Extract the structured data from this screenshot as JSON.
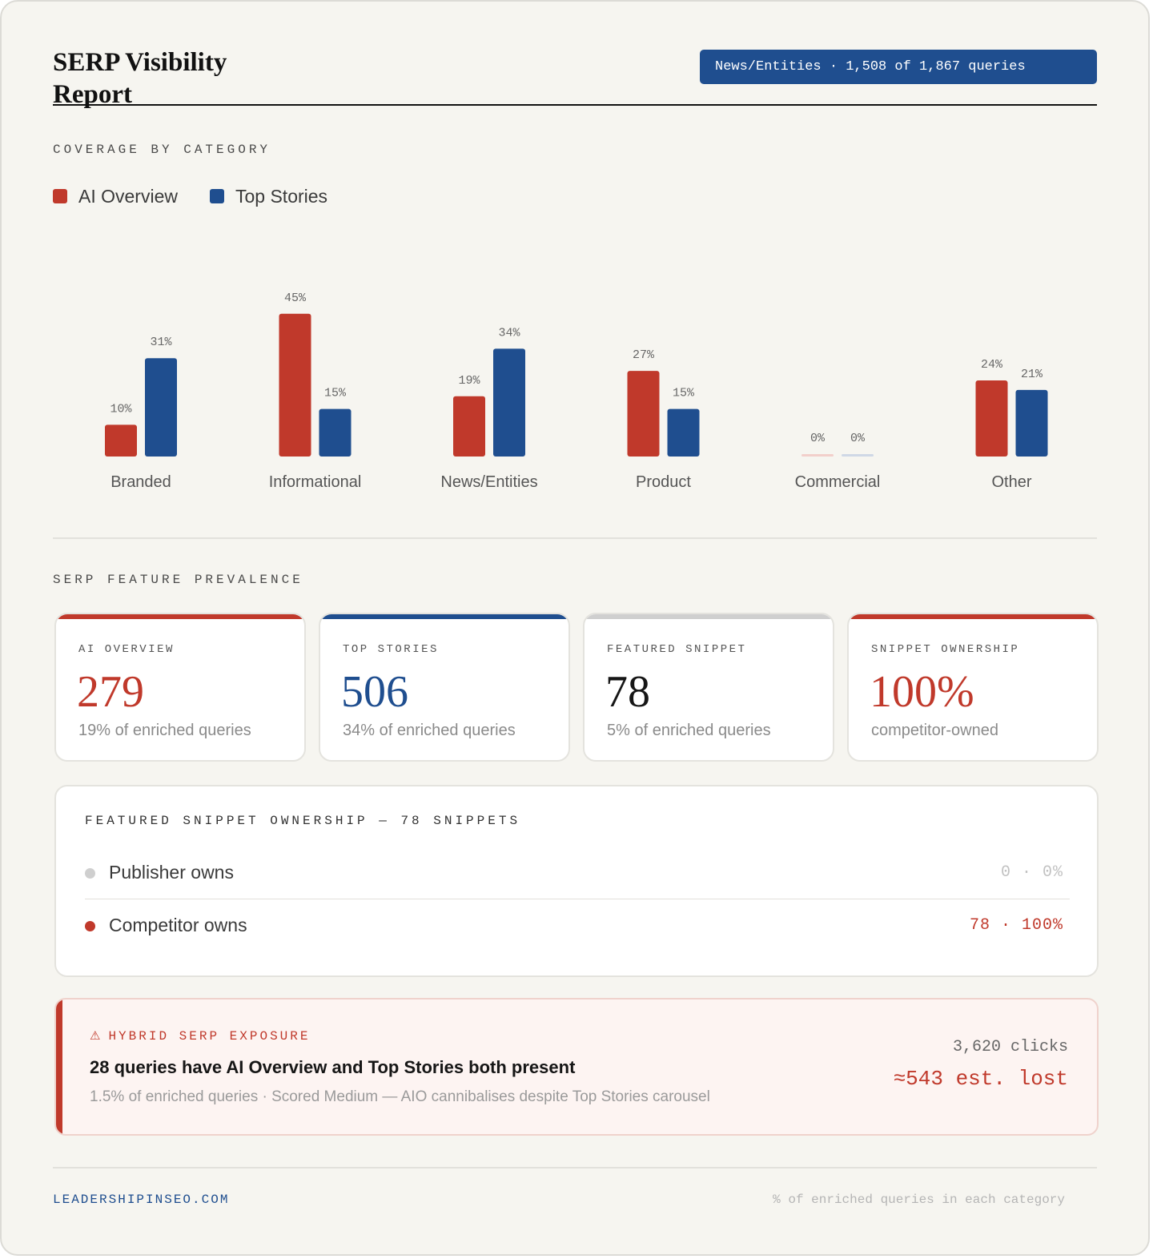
{
  "header": {
    "title": "SERP Visibility Report",
    "filter_badge": "News/Entities · 1,508 of 1,867 queries"
  },
  "coverage": {
    "section_label": "COVERAGE BY CATEGORY"
  },
  "colors": {
    "ai_overview": "#c0392b",
    "top_stories": "#1f4e8f",
    "featured_snippet": "#cfcfcf",
    "ink": "#161616",
    "muted": "#bdbdbd"
  },
  "chart_data": {
    "type": "bar",
    "categories": [
      "Branded",
      "Informational",
      "News/Entities",
      "Product",
      "Commercial",
      "Other"
    ],
    "series": [
      {
        "name": "AI Overview",
        "values": [
          10,
          45,
          19,
          27,
          0,
          24
        ]
      },
      {
        "name": "Top Stories",
        "values": [
          31,
          15,
          34,
          15,
          0,
          21
        ]
      }
    ],
    "value_suffix": "%",
    "ylim": [
      0,
      50
    ],
    "legend_position": "top-left",
    "grid": false
  },
  "features": {
    "section_label": "SERP FEATURE PREVALENCE",
    "cards": [
      {
        "label": "AI OVERVIEW",
        "value": "279",
        "sub": "19% of enriched queries",
        "accent": "#c0392b",
        "value_color": "#c0392b"
      },
      {
        "label": "TOP STORIES",
        "value": "506",
        "sub": "34% of enriched queries",
        "accent": "#1f4e8f",
        "value_color": "#1f4e8f"
      },
      {
        "label": "FEATURED SNIPPET",
        "value": "78",
        "sub": "5% of enriched queries",
        "accent": "#cfcfcf",
        "value_color": "#161616"
      },
      {
        "label": "SNIPPET OWNERSHIP",
        "value": "100%",
        "sub": "competitor-owned",
        "accent": "#c0392b",
        "value_color": "#c0392b"
      }
    ]
  },
  "ownership": {
    "title": "FEATURED SNIPPET OWNERSHIP — 78 SNIPPETS",
    "rows": [
      {
        "label": "Publisher owns",
        "value": "0 · 0%",
        "dot_color": "#cfcfcf",
        "value_color": "#c2c2c2"
      },
      {
        "label": "Competitor owns",
        "value": "78 · 100%",
        "dot_color": "#c0392b",
        "value_color": "#c0392b"
      }
    ]
  },
  "alert": {
    "icon": "warning-icon",
    "icon_glyph": "⚠",
    "tag": "HYBRID SERP EXPOSURE",
    "headline": "28 queries have AI Overview and Top Stories both present",
    "description": "1.5% of enriched queries · Scored Medium — AIO cannibalises despite Top Stories carousel",
    "clicks": "3,620 clicks",
    "lost": "≈543 est. lost"
  },
  "footer": {
    "site": "LEADERSHIPINSEO.COM",
    "note": "% of enriched queries in each category"
  }
}
